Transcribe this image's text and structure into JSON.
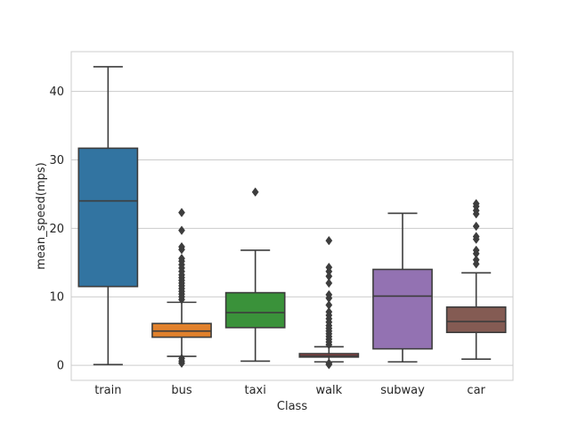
{
  "chart_data": {
    "type": "box",
    "title": "",
    "xlabel": "Class",
    "ylabel": "mean_speed(mps)",
    "ylim": [
      -2.2,
      45.8
    ],
    "yticks": [
      0,
      10,
      20,
      30,
      40
    ],
    "grid": "horizontal",
    "categories": [
      "train",
      "bus",
      "taxi",
      "walk",
      "subway",
      "car"
    ],
    "boxes": [
      {
        "label": "train",
        "color": "#3274a1",
        "min": 0.1,
        "q1": 11.5,
        "median": 24.0,
        "q3": 31.7,
        "max": 43.6,
        "outliers": []
      },
      {
        "label": "bus",
        "color": "#e1812c",
        "min": 1.3,
        "q1": 4.1,
        "median": 5.0,
        "q3": 6.1,
        "max": 9.2,
        "outliers": [
          9.6,
          10.0,
          10.4,
          10.8,
          11.2,
          11.6,
          12.0,
          12.4,
          12.8,
          13.2,
          13.7,
          14.2,
          14.7,
          15.2,
          15.6,
          16.9,
          17.3,
          19.7,
          22.3,
          1.0,
          0.6,
          0.3
        ]
      },
      {
        "label": "taxi",
        "color": "#3a923a",
        "min": 0.6,
        "q1": 5.5,
        "median": 7.7,
        "q3": 10.6,
        "max": 16.8,
        "outliers": [
          25.3
        ]
      },
      {
        "label": "walk",
        "color": "#c03d3e",
        "min": 0.5,
        "q1": 1.2,
        "median": 1.4,
        "q3": 1.7,
        "max": 2.7,
        "outliers": [
          3.0,
          3.4,
          3.8,
          4.2,
          4.6,
          5.0,
          5.4,
          5.8,
          6.3,
          6.8,
          7.3,
          7.8,
          8.8,
          9.8,
          10.3,
          12.0,
          13.0,
          13.7,
          14.3,
          18.2,
          0.3,
          0.1
        ]
      },
      {
        "label": "subway",
        "color": "#9372b2",
        "min": 0.5,
        "q1": 2.4,
        "median": 10.1,
        "q3": 14.0,
        "max": 22.2,
        "outliers": []
      },
      {
        "label": "car",
        "color": "#845b53",
        "min": 0.9,
        "q1": 4.8,
        "median": 6.4,
        "q3": 8.5,
        "max": 13.5,
        "outliers": [
          14.8,
          15.4,
          16.3,
          16.8,
          18.4,
          18.8,
          20.3,
          22.1,
          22.6,
          23.2,
          23.6
        ]
      }
    ]
  }
}
